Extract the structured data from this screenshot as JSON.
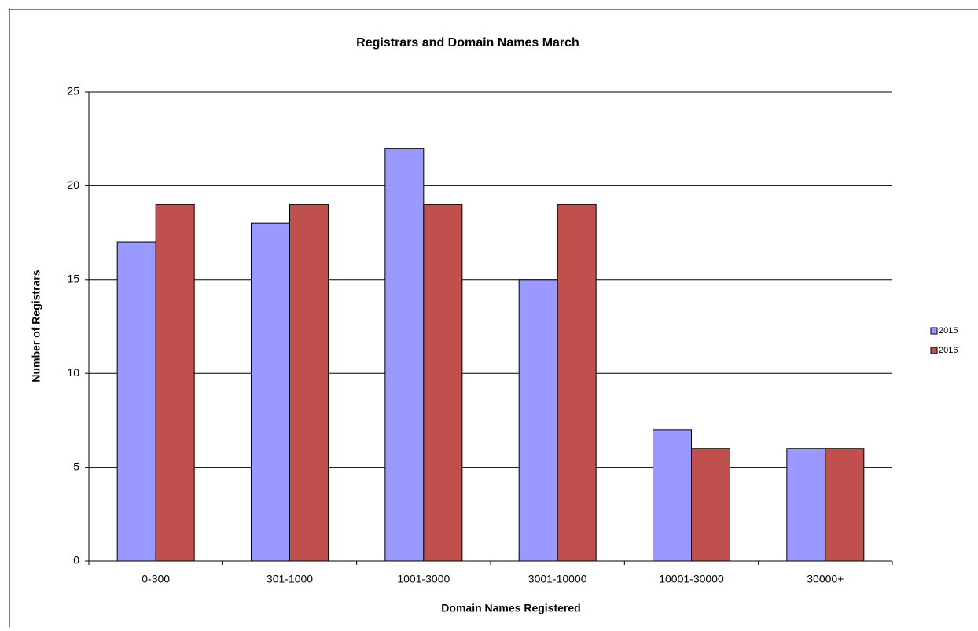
{
  "chart_data": {
    "type": "bar",
    "title": "Registrars and Domain Names March",
    "x_label": "Domain Names Registered",
    "y_label": "Number of Registrars",
    "categories": [
      "0-300",
      "301-1000",
      "1001-3000",
      "3001-10000",
      "10001-30000",
      "30000+"
    ],
    "series": [
      {
        "name": "2015",
        "color": "#9999ff",
        "values": [
          17,
          18,
          22,
          15,
          7,
          6
        ]
      },
      {
        "name": "2016",
        "color": "#c0504d",
        "values": [
          19,
          19,
          19,
          19,
          6,
          6
        ]
      }
    ],
    "ylim": [
      0,
      25
    ],
    "yticks": [
      0,
      5,
      10,
      15,
      20,
      25
    ],
    "grid": true,
    "legend": "right"
  }
}
